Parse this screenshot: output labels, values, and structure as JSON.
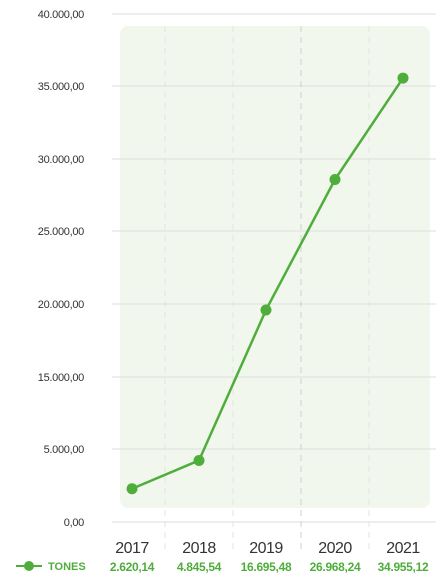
{
  "colors": {
    "series": "#4fae3b",
    "plot_background": "#f2f7ee",
    "grid": "#dddddd",
    "tick_text": "#333333"
  },
  "chart_data": {
    "type": "line",
    "title": "",
    "xlabel": "",
    "ylabel": "",
    "categories": [
      "2017",
      "2018",
      "2019",
      "2020",
      "2021"
    ],
    "y_ticks": [
      "0,00",
      "5.000,00",
      "15.000,00",
      "20.000,00",
      "25.000,00",
      "30.000,00",
      "35.000,00",
      "40.000,00"
    ],
    "ylim": [
      0,
      40000
    ],
    "grid": true,
    "legend_position": "bottom-left",
    "series": [
      {
        "name": "TONES",
        "values": [
          2620.14,
          4845.54,
          16695.48,
          26968.24,
          34955.12
        ],
        "value_labels": [
          "2.620,14",
          "4.845,54",
          "16.695,48",
          "26.968,24",
          "34.955,12"
        ]
      }
    ]
  }
}
